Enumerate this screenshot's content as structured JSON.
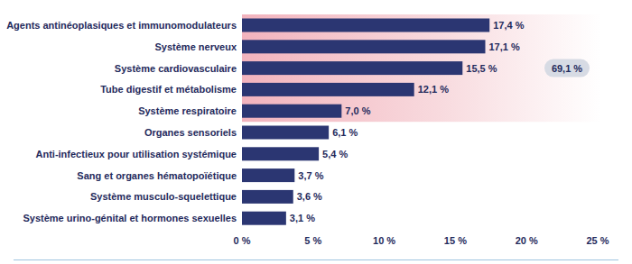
{
  "chart_data": {
    "type": "bar",
    "orientation": "horizontal",
    "categories": [
      "Agents antinéoplasiques et immunomodulateurs",
      "Système nerveux",
      "Système cardiovasculaire",
      "Tube digestif et métabolisme",
      "Système respiratoire",
      "Organes sensoriels",
      "Anti-infectieux pour utilisation systémique",
      "Sang et organes hématopoïétique",
      "Système musculo-squelettique",
      "Système urino-génital et hormones sexuelles"
    ],
    "values": [
      17.4,
      17.1,
      15.5,
      12.1,
      7.0,
      6.1,
      5.4,
      3.7,
      3.6,
      3.1
    ],
    "value_labels": [
      "17,4 %",
      "17,1 %",
      "15,5 %",
      "12,1 %",
      "7,0 %",
      "6,1 %",
      "5,4 %",
      "3,7 %",
      "3,6 %",
      "3,1 %"
    ],
    "color": "#2b3672",
    "xlim": [
      0,
      25
    ],
    "xticks": [
      {
        "value": 0,
        "label": "0 %"
      },
      {
        "value": 5,
        "label": "5 %"
      },
      {
        "value": 10,
        "label": "10 %"
      },
      {
        "value": 15,
        "label": "15 %"
      },
      {
        "value": 20,
        "label": "20 %"
      },
      {
        "value": 25,
        "label": "25 %"
      }
    ],
    "data_labels": true,
    "grid": false,
    "annotation": {
      "text": "69,1 %",
      "value": 69.1
    }
  }
}
